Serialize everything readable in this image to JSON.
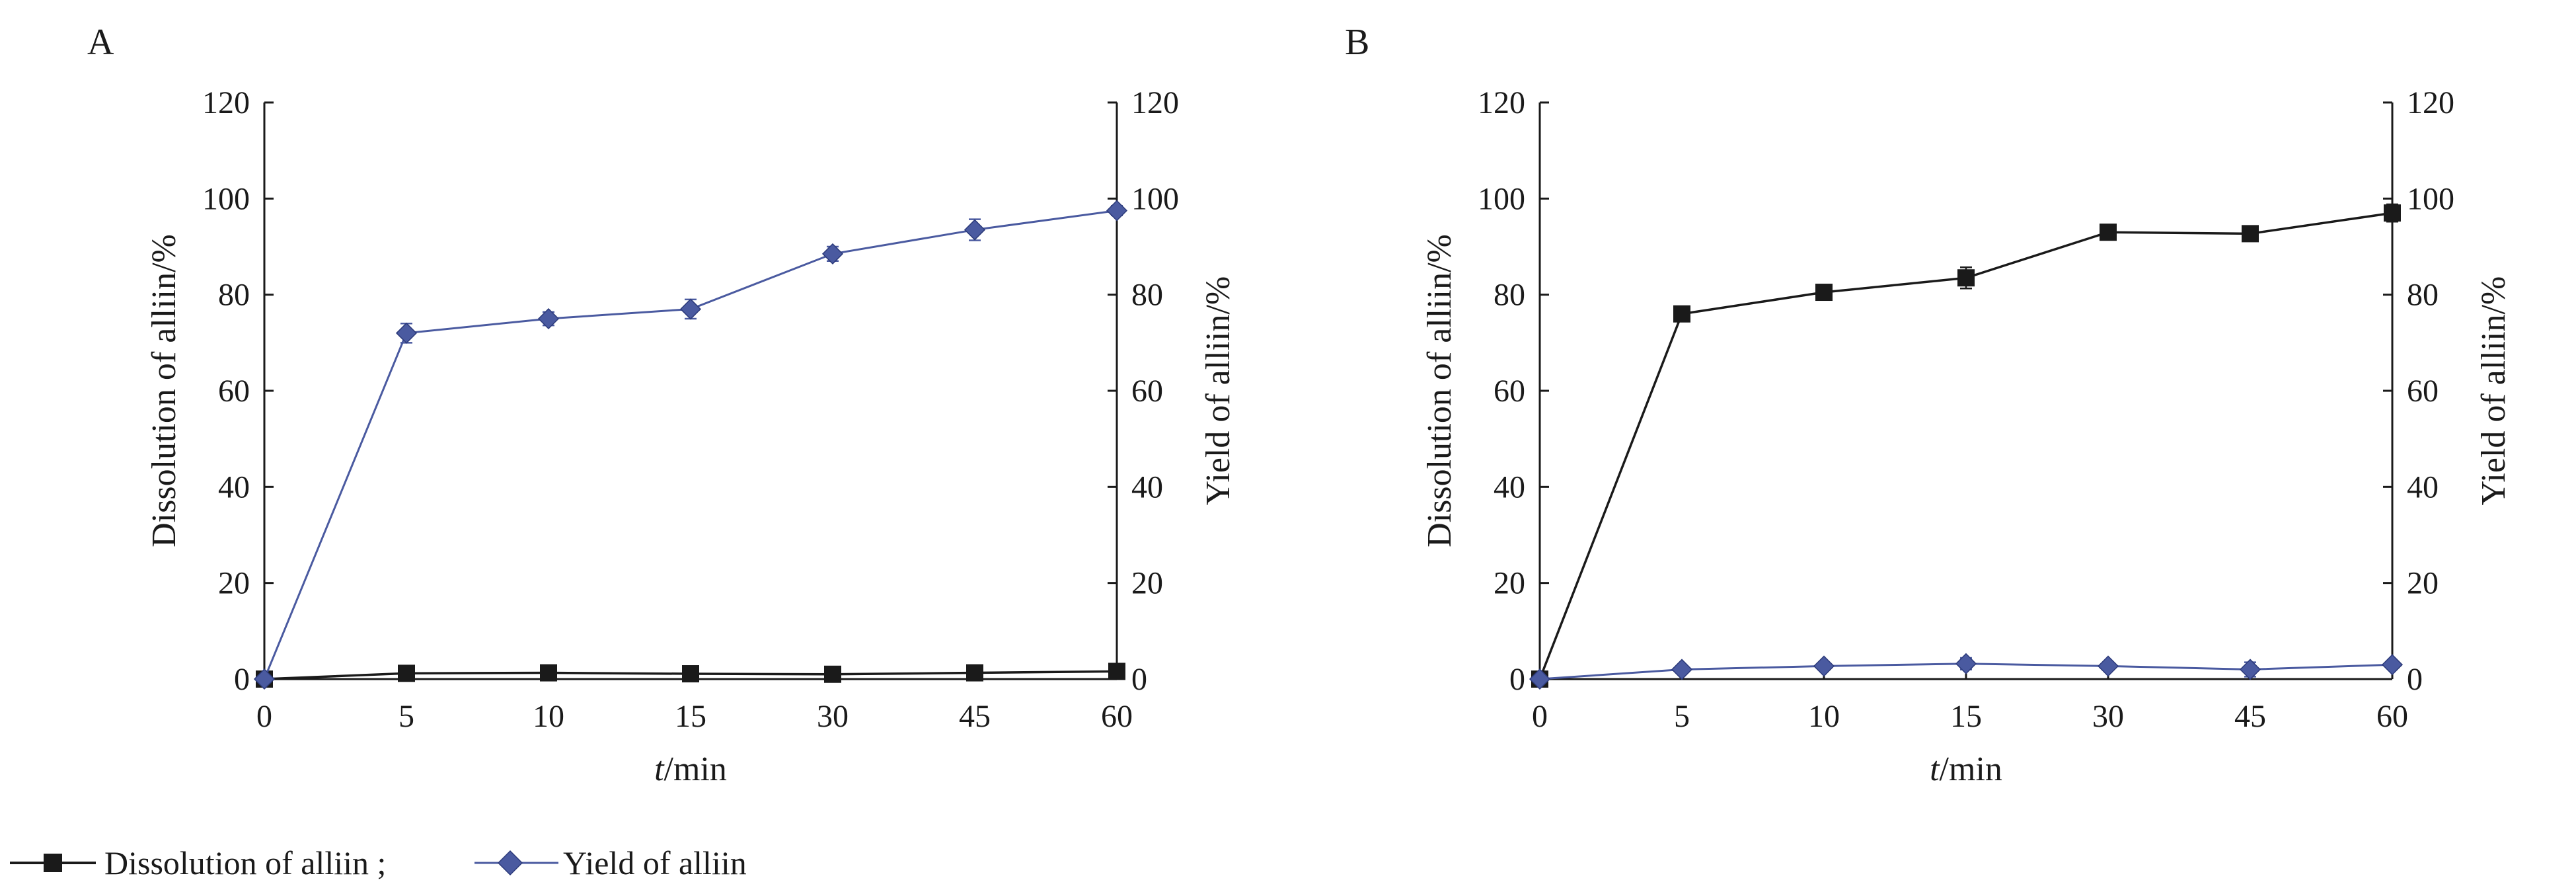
{
  "chart_data": [
    {
      "type": "line",
      "panel_label": "A",
      "categories": [
        "0",
        "5",
        "10",
        "15",
        "30",
        "45",
        "60"
      ],
      "xlabel_italic": "t",
      "xlabel_rest": "/min",
      "ylabel_left": "Dissolution of alliin/%",
      "ylabel_right": "Yield of alliin/%",
      "ylim": [
        0,
        120
      ],
      "yticks": [
        "0",
        "20",
        "40",
        "60",
        "80",
        "100",
        "120"
      ],
      "series": [
        {
          "name": "Dissolution of alliin",
          "axis": "left",
          "color": "#1a1a1a",
          "marker": "square",
          "values": [
            0,
            1.2,
            1.3,
            1.1,
            1.0,
            1.3,
            1.6
          ],
          "errors": [
            0,
            0.4,
            0.4,
            0.6,
            0.5,
            0.4,
            0.4
          ]
        },
        {
          "name": "Yield of alliin",
          "axis": "right",
          "color": "#4a5aa0",
          "marker": "diamond",
          "values": [
            0,
            72,
            75,
            77,
            88.5,
            93.5,
            97.5
          ],
          "errors": [
            0,
            2.0,
            1.4,
            2.0,
            1.5,
            2.2,
            1.0
          ]
        }
      ]
    },
    {
      "type": "line",
      "panel_label": "B",
      "categories": [
        "0",
        "5",
        "10",
        "15",
        "30",
        "45",
        "60"
      ],
      "xlabel_italic": "t",
      "xlabel_rest": "/min",
      "ylabel_left": "Dissolution of alliin/%",
      "ylabel_right": "Yield of alliin/%",
      "ylim": [
        0,
        120
      ],
      "yticks": [
        "0",
        "20",
        "40",
        "60",
        "80",
        "100",
        "120"
      ],
      "series": [
        {
          "name": "Dissolution of alliin",
          "axis": "left",
          "color": "#1a1a1a",
          "marker": "square",
          "values": [
            0,
            76,
            80.5,
            83.5,
            93,
            92.7,
            97
          ],
          "errors": [
            0,
            0.8,
            1.5,
            2.2,
            0.8,
            0.7,
            1.8
          ]
        },
        {
          "name": "Yield of alliin",
          "axis": "right",
          "color": "#4a5aa0",
          "marker": "diamond",
          "values": [
            0,
            2,
            2.7,
            3.2,
            2.7,
            2.0,
            3.0
          ],
          "errors": [
            0,
            0.5,
            0.8,
            1.2,
            0.8,
            1.5,
            0.5
          ]
        }
      ]
    }
  ],
  "legend": {
    "items": [
      {
        "label": "Dissolution of alliin ;",
        "color": "#1a1a1a",
        "marker": "square"
      },
      {
        "label": "Yield of alliin",
        "color": "#4a5aa0",
        "marker": "diamond"
      }
    ]
  }
}
